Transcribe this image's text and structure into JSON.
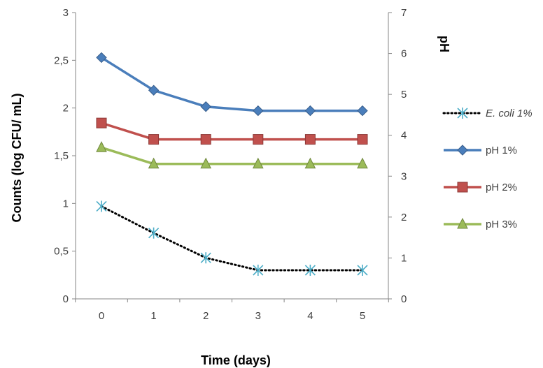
{
  "chart_data": {
    "type": "line",
    "x": [
      0,
      1,
      2,
      3,
      4,
      5
    ],
    "xlabel": "Time (days)",
    "ylabel": "Counts (log CFU/ mL)",
    "y2label": "pH",
    "ylim": [
      0,
      3
    ],
    "y2lim": [
      0,
      7
    ],
    "yticks": [
      "0",
      "0,5",
      "1",
      "1,5",
      "2",
      "2,5",
      "3"
    ],
    "y2ticks": [
      "0",
      "1",
      "2",
      "3",
      "4",
      "5",
      "6",
      "7"
    ],
    "xticks": [
      "0",
      "1",
      "2",
      "3",
      "4",
      "5"
    ],
    "grid": false,
    "legend_position": "right",
    "series": [
      {
        "name": "E. coli 1%",
        "axis": "left",
        "values": [
          0.97,
          0.69,
          0.43,
          0.3,
          0.3,
          0.3
        ],
        "color": "#000000",
        "marker": "asterisk",
        "marker_color": "#4bacc6",
        "style": "dotted"
      },
      {
        "name": "pH 1%",
        "axis": "right",
        "values": [
          5.9,
          5.1,
          4.7,
          4.6,
          4.6,
          4.6
        ],
        "color": "#4a7ebb",
        "marker": "diamond",
        "style": "solid"
      },
      {
        "name": "pH 2%",
        "axis": "right",
        "values": [
          4.3,
          3.9,
          3.9,
          3.9,
          3.9,
          3.9
        ],
        "color": "#c0504d",
        "marker": "square",
        "style": "solid"
      },
      {
        "name": "pH 3%",
        "axis": "right",
        "values": [
          3.7,
          3.3,
          3.3,
          3.3,
          3.3,
          3.3
        ],
        "color": "#9bbb59",
        "marker": "triangle",
        "style": "solid"
      }
    ]
  }
}
